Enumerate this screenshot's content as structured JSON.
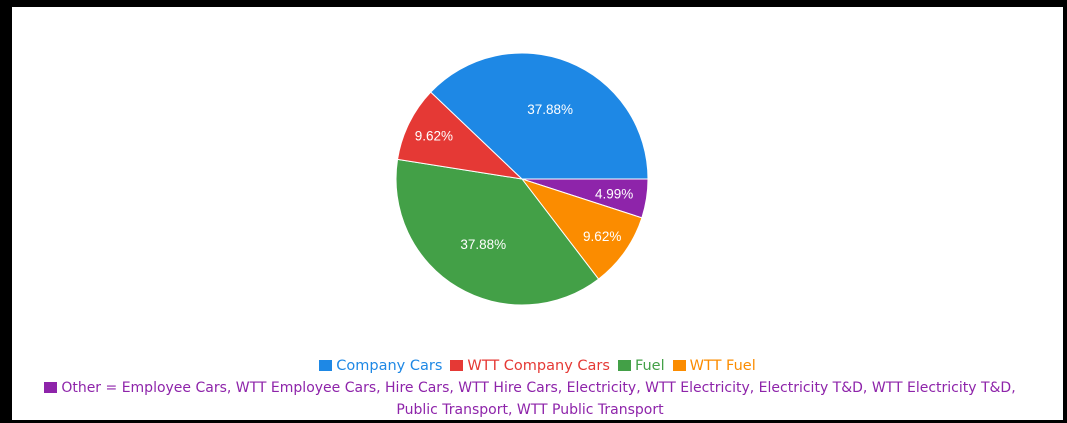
{
  "chart_data": {
    "type": "pie",
    "slices": [
      {
        "label": "Company Cars",
        "value": 37.88,
        "display": "37.88%",
        "color": "#1e88e5"
      },
      {
        "label": "WTT Company Cars",
        "value": 9.62,
        "display": "9.62%",
        "color": "#e53935"
      },
      {
        "label": "Fuel",
        "value": 37.88,
        "display": "37.88%",
        "color": "#43a047"
      },
      {
        "label": "WTT Fuel",
        "value": 9.62,
        "display": "9.62%",
        "color": "#fb8c00"
      },
      {
        "label": "Other",
        "value": 4.99,
        "display": "4.99%",
        "color": "#8e24aa"
      }
    ],
    "slice_order_clockwise_from_right": [
      "Other",
      "WTT Fuel",
      "Fuel",
      "WTT Company Cars",
      "Company Cars"
    ],
    "legend": {
      "placement": "bottom",
      "items": [
        {
          "label": "Company Cars",
          "color": "#1e88e5"
        },
        {
          "label": "WTT Company Cars",
          "color": "#e53935"
        },
        {
          "label": "Fuel",
          "color": "#43a047"
        },
        {
          "label": "WTT Fuel",
          "color": "#fb8c00"
        }
      ],
      "other_text": "Other = Employee Cars, WTT Employee Cars, Hire Cars, WTT Hire Cars, Electricity, WTT Electricity, Electricity T&D, WTT Electricity T&D, Public Transport, WTT Public Transport",
      "other_color": "#8e24aa"
    }
  }
}
